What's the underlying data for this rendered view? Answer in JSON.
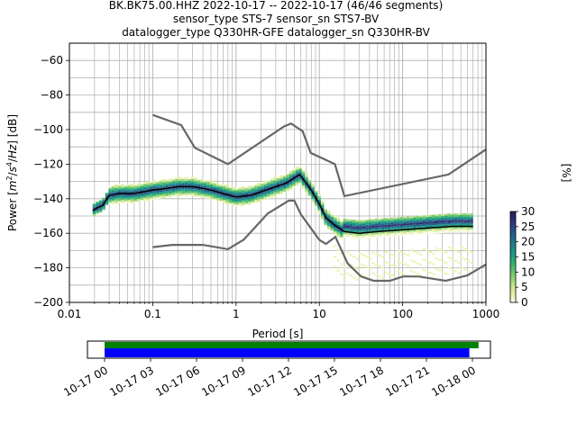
{
  "title": {
    "line1": "BK.BK75.00.HHZ   2022-10-17 -- 2022-10-17  (46/46 segments)",
    "line2": "sensor_type STS-7 sensor_sn STS7-BV",
    "line3": "datalogger_type Q330HR-GFE datalogger_sn Q330HR-BV"
  },
  "colors": {
    "mean_line": "#000000",
    "noise_model": "#666666",
    "grid": "#b0b0b0",
    "coverage_data": "#008000",
    "coverage_gaps": "#0000ff"
  },
  "colorbar": {
    "label": "[%]",
    "ticks": [
      "0",
      "5",
      "10",
      "15",
      "20",
      "25",
      "30"
    ],
    "range": [
      0,
      30
    ],
    "colormap": "pqlx-like (white-yellow-green-teal-navy)"
  },
  "coverage": {
    "xticks": [
      "10-17 00",
      "10-17 03",
      "10-17 06",
      "10-17 09",
      "10-17 12",
      "10-17 15",
      "10-17 18",
      "10-17 21",
      "10-18 00"
    ],
    "data_bar_end_hours": 24.4,
    "gap_bar_end_hours": 23.8
  },
  "chart_data": {
    "type": "heatmap",
    "xlabel": "Period [s]",
    "ylabel": "Power [m²/s⁴/Hz] [dB]",
    "x_scale": "log",
    "xlim": [
      0.01,
      1000
    ],
    "ylim": [
      -200,
      -50
    ],
    "xtick_labels": [
      "0.01",
      "0.1",
      "1",
      "10",
      "100",
      "1000"
    ],
    "ytick_labels": [
      "−60",
      "−80",
      "−100",
      "−120",
      "−140",
      "−160",
      "−180",
      "−200"
    ],
    "yticks": [
      -60,
      -80,
      -100,
      -120,
      -140,
      -160,
      -180,
      -200
    ],
    "xticks": [
      0.01,
      0.1,
      1,
      10,
      100,
      1000
    ],
    "grid": true,
    "series": [
      {
        "role": "mean PSD",
        "x": [
          0.019,
          0.022,
          0.025,
          0.03,
          0.04,
          0.06,
          0.1,
          0.15,
          0.2,
          0.3,
          0.4,
          0.5,
          0.7,
          1.0,
          1.5,
          2.0,
          3.0,
          4.0,
          5.0,
          5.8,
          6.5,
          8.0,
          10.0,
          12.0,
          15.0,
          20.0,
          30.0,
          50.0,
          100.0,
          200.0,
          400.0,
          700.0
        ],
        "y": [
          -147,
          -145,
          -144,
          -138,
          -137,
          -137,
          -135,
          -134,
          -133,
          -133,
          -134,
          -135,
          -137,
          -139,
          -138,
          -136,
          -133,
          -131,
          -128,
          -126,
          -129,
          -135,
          -143,
          -151,
          -155,
          -159,
          -160,
          -159,
          -158,
          -157,
          -156,
          -156
        ]
      },
      {
        "role": "new high noise model",
        "x": [
          0.1,
          0.22,
          0.32,
          0.8,
          3.8,
          4.6,
          6.3,
          7.9,
          15.4,
          20.0,
          354.8,
          1000.0
        ],
        "y": [
          -91.5,
          -97.4,
          -110.5,
          -120.0,
          -98.0,
          -96.5,
          -101.0,
          -113.5,
          -120.0,
          -138.5,
          -126.0,
          -111.5
        ]
      },
      {
        "role": "new low noise model",
        "x": [
          0.1,
          0.17,
          0.4,
          0.8,
          1.24,
          2.4,
          4.3,
          5.0,
          6.0,
          10.0,
          12.0,
          15.6,
          21.9,
          31.6,
          45.0,
          70.0,
          101.0,
          154.0,
          328.0,
          600.0,
          1000.0
        ],
        "y": [
          -168.0,
          -166.7,
          -166.7,
          -169.2,
          -163.7,
          -148.6,
          -141.1,
          -141.1,
          -149.0,
          -163.8,
          -166.2,
          -162.1,
          -177.5,
          -185.0,
          -187.5,
          -187.5,
          -185.0,
          -185.0,
          -187.5,
          -184.4,
          -178.0
        ]
      }
    ]
  }
}
